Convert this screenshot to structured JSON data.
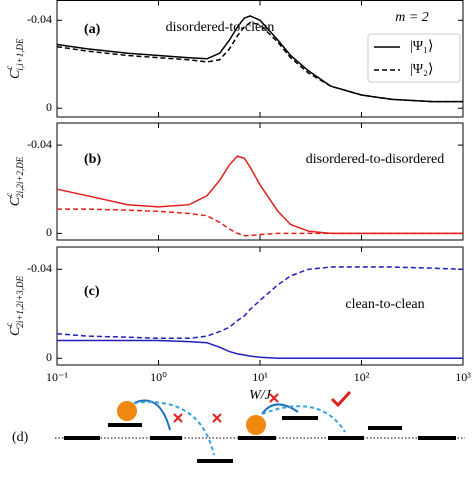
{
  "chart_data": [
    {
      "type": "line",
      "label": "(a)",
      "annotation": "disordered-to-clean",
      "ylabel": "C",
      "ylabel_sup": "c",
      "ylabel_sub": "i,i+1,DE",
      "legend_title": "m = 2",
      "legend": "upper right",
      "x": [
        0.1,
        0.2,
        0.5,
        1,
        2,
        3,
        4,
        5,
        6,
        7,
        8,
        10,
        15,
        20,
        30,
        50,
        100,
        200,
        500,
        1000
      ],
      "xscale": "log",
      "xlim": [
        0.1,
        1000
      ],
      "xticks": [
        {
          "value": 0.1,
          "label": "10⁻¹"
        },
        {
          "value": 1,
          "label": "10⁰"
        },
        {
          "value": 10,
          "label": "10¹"
        },
        {
          "value": 100,
          "label": "10²"
        },
        {
          "value": 1000,
          "label": "10³"
        }
      ],
      "ylim": [
        0.004,
        -0.049
      ],
      "yticks": [
        0,
        -0.04
      ],
      "series": [
        {
          "name": "|Ψ₁⟩",
          "color": "#000000",
          "dash": false,
          "values": [
            -0.029,
            -0.027,
            -0.025,
            -0.024,
            -0.023,
            -0.0225,
            -0.025,
            -0.031,
            -0.037,
            -0.041,
            -0.042,
            -0.04,
            -0.031,
            -0.024,
            -0.017,
            -0.01,
            -0.006,
            -0.004,
            -0.003,
            -0.003
          ]
        },
        {
          "name": "|Ψ₂⟩",
          "color": "#000000",
          "dash": true,
          "values": [
            -0.028,
            -0.026,
            -0.024,
            -0.023,
            -0.022,
            -0.021,
            -0.022,
            -0.027,
            -0.033,
            -0.037,
            -0.039,
            -0.038,
            -0.03,
            -0.023,
            -0.016,
            -0.01,
            -0.006,
            -0.004,
            -0.003,
            -0.003
          ]
        }
      ]
    },
    {
      "type": "line",
      "label": "(b)",
      "annotation": "disordered-to-disordered",
      "ylabel": "C",
      "ylabel_sup": "c",
      "ylabel_sub": "2i,2i+2,DE",
      "x": [
        0.1,
        0.2,
        0.5,
        1,
        2,
        3,
        4,
        5,
        6,
        7,
        8,
        10,
        15,
        20,
        30,
        50,
        100,
        200,
        500,
        1000
      ],
      "xscale": "log",
      "xlim": [
        0.1,
        1000
      ],
      "xticks": [
        {
          "value": 0.1,
          "label": "10⁻¹"
        },
        {
          "value": 1,
          "label": "10⁰"
        },
        {
          "value": 10,
          "label": "10¹"
        },
        {
          "value": 100,
          "label": "10²"
        },
        {
          "value": 1000,
          "label": "10³"
        }
      ],
      "ylim": [
        0.003,
        -0.05
      ],
      "yticks": [
        0,
        -0.04
      ],
      "series": [
        {
          "name": "|Ψ₁⟩",
          "color": "#e0201b",
          "dash": false,
          "values": [
            -0.02,
            -0.017,
            -0.013,
            -0.012,
            -0.013,
            -0.017,
            -0.024,
            -0.031,
            -0.035,
            -0.034,
            -0.03,
            -0.022,
            -0.01,
            -0.004,
            -0.001,
            0,
            0,
            0,
            0,
            0
          ]
        },
        {
          "name": "|Ψ₂⟩",
          "color": "#e0201b",
          "dash": true,
          "values": [
            -0.011,
            -0.011,
            -0.0105,
            -0.01,
            -0.009,
            -0.008,
            -0.005,
            -0.002,
            0,
            0.001,
            0.001,
            0.0005,
            0,
            0,
            0,
            0,
            0,
            0,
            0,
            0
          ]
        }
      ]
    },
    {
      "type": "line",
      "label": "(c)",
      "annotation": "clean-to-clean",
      "ylabel": "C",
      "ylabel_sup": "c",
      "ylabel_sub": "2i+1,2i+3,DE",
      "xlabel": "W/J",
      "x": [
        0.1,
        0.2,
        0.5,
        1,
        2,
        3,
        4,
        5,
        6,
        7,
        8,
        10,
        15,
        20,
        30,
        50,
        100,
        200,
        500,
        1000
      ],
      "xscale": "log",
      "xlim": [
        0.1,
        1000
      ],
      "xticks": [
        {
          "value": 0.1,
          "label": "10⁻¹"
        },
        {
          "value": 1,
          "label": "10⁰"
        },
        {
          "value": 10,
          "label": "10¹"
        },
        {
          "value": 100,
          "label": "10²"
        },
        {
          "value": 1000,
          "label": "10³"
        }
      ],
      "ylim": [
        0.003,
        -0.05
      ],
      "yticks": [
        0,
        -0.04
      ],
      "series": [
        {
          "name": "|Ψ₁⟩",
          "color": "#1f1fbf",
          "dash": false,
          "values": [
            -0.008,
            -0.008,
            -0.008,
            -0.008,
            -0.0075,
            -0.007,
            -0.005,
            -0.003,
            -0.002,
            -0.0015,
            -0.001,
            -0.0005,
            0,
            0,
            0,
            0,
            0,
            0,
            0,
            0
          ]
        },
        {
          "name": "|Ψ₂⟩",
          "color": "#1f1fbf",
          "dash": true,
          "values": [
            -0.011,
            -0.01,
            -0.0095,
            -0.009,
            -0.009,
            -0.01,
            -0.012,
            -0.014,
            -0.017,
            -0.019,
            -0.022,
            -0.026,
            -0.033,
            -0.037,
            -0.04,
            -0.041,
            -0.041,
            -0.041,
            -0.0405,
            -0.04
          ]
        }
      ]
    }
  ],
  "diagram": {
    "label": "(d)"
  }
}
